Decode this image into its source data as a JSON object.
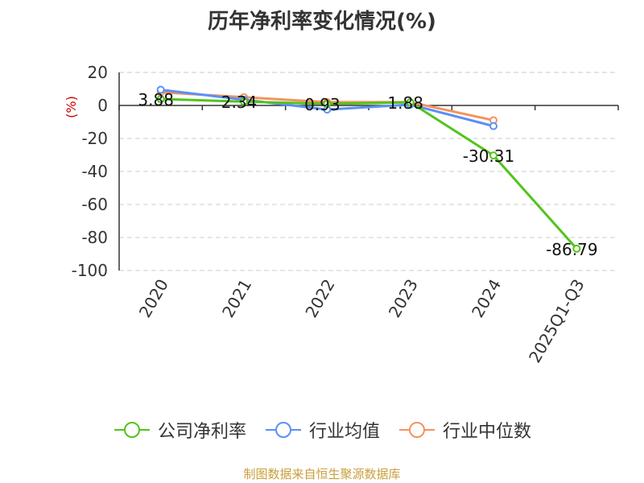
{
  "title": "历年净利率变化情况(%)",
  "source": "制图数据来自恒生聚源数据库",
  "chart_data": {
    "type": "line",
    "categories": [
      "2020",
      "2021",
      "2022",
      "2023",
      "2024",
      "2025Q1-Q3"
    ],
    "ylabel": "(%)",
    "ylim": [
      -100,
      20
    ],
    "yticks": [
      20,
      0,
      -20,
      -40,
      -60,
      -80,
      -100
    ],
    "grid": true,
    "legend_position": "bottom",
    "series": [
      {
        "name": "公司净利率",
        "color": "#52c41a",
        "values": [
          3.88,
          2.34,
          0.93,
          1.88,
          -30.31,
          -86.79
        ],
        "labels": [
          "3.88",
          "2.34",
          "0.93",
          "1.88",
          "-30.31",
          "-86.79"
        ]
      },
      {
        "name": "行业均值",
        "color": "#5b8ff9",
        "values": [
          9.5,
          3.5,
          -2.5,
          0.5,
          -12.5,
          null
        ]
      },
      {
        "name": "行业中位数",
        "color": "#f4935c",
        "values": [
          8.0,
          5.0,
          2.0,
          2.0,
          -9.0,
          null
        ]
      }
    ]
  }
}
